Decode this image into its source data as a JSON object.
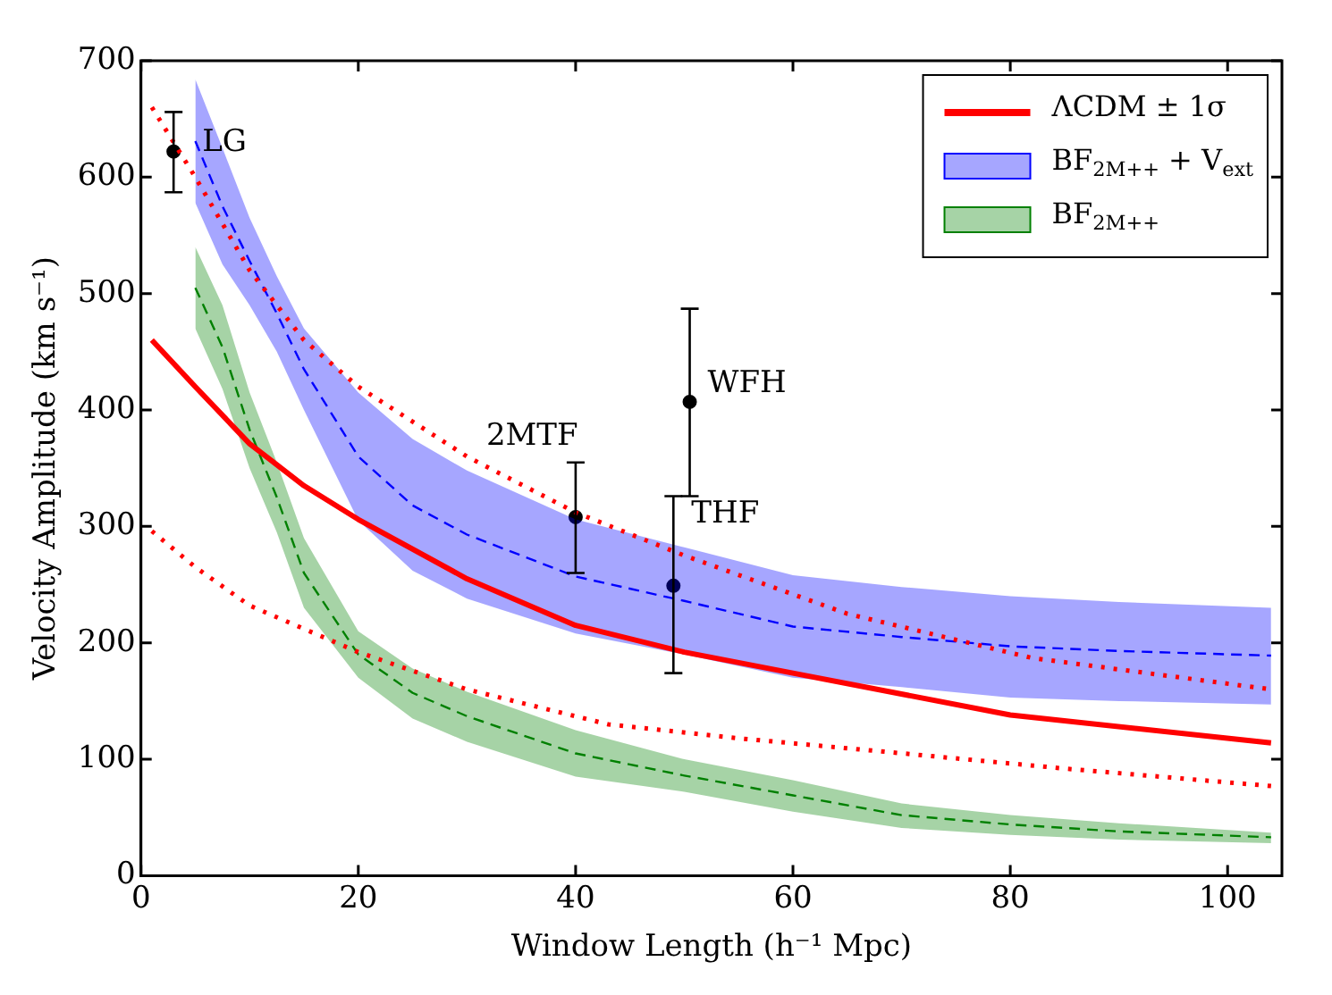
{
  "chart_data": {
    "type": "line",
    "xlabel": "Window Length (h⁻¹ Mpc)",
    "ylabel": "Velocity Amplitude (km s⁻¹)",
    "xlim": [
      0,
      105
    ],
    "ylim": [
      0,
      700
    ],
    "xticks": [
      0,
      20,
      40,
      60,
      80,
      100
    ],
    "yticks": [
      0,
      100,
      200,
      300,
      400,
      500,
      600,
      700
    ],
    "grid": false,
    "legend": "top right",
    "series": [
      {
        "name": "ΛCDM ± 1σ",
        "line_style": "solid",
        "color": "#ff0000",
        "x": [
          1,
          5,
          10,
          15,
          20,
          30,
          40,
          50,
          60,
          80,
          104
        ],
        "values": [
          460,
          420,
          371,
          335,
          306,
          255,
          215,
          192,
          174,
          138,
          114
        ]
      },
      {
        "line_style": "dotted",
        "color": "#ff0000",
        "x": [
          1,
          5,
          10,
          15,
          20,
          30,
          40,
          50,
          65,
          82,
          104
        ],
        "values": [
          660,
          600,
          520,
          460,
          420,
          360,
          312,
          275,
          225,
          187,
          160
        ]
      },
      {
        "line_style": "dotted",
        "color": "#ff0000",
        "x": [
          1,
          5,
          10,
          20,
          30,
          43,
          55,
          69,
          85,
          104
        ],
        "values": [
          296,
          265,
          232,
          192,
          160,
          130,
          118,
          106,
          92,
          77
        ]
      },
      {
        "name": "BF$_{2M++}$ + V$_{ext}$",
        "line_style": "dashed",
        "color": "#0000ff",
        "x": [
          5,
          7.5,
          10,
          12.5,
          15,
          20,
          25,
          30,
          40,
          50,
          60,
          70,
          80,
          90,
          104
        ],
        "values": [
          631,
          575,
          528,
          483,
          435,
          360,
          318,
          293,
          257,
          236,
          214,
          205,
          197,
          193,
          189
        ],
        "lower": [
          578,
          525,
          490,
          450,
          400,
          305,
          262,
          238,
          208,
          190,
          170,
          162,
          153,
          150,
          147
        ],
        "upper": [
          684,
          625,
          565,
          515,
          470,
          415,
          375,
          348,
          306,
          282,
          258,
          248,
          240,
          235,
          230
        ]
      },
      {
        "name": "BF$_{2M++}$",
        "line_style": "dashed",
        "color": "#008000",
        "x": [
          5,
          7.5,
          10,
          12.5,
          15,
          20,
          25,
          30,
          40,
          50,
          60,
          70,
          80,
          90,
          104
        ],
        "values": [
          505,
          454,
          383,
          325,
          260,
          190,
          157,
          137,
          105,
          86,
          69,
          52,
          44,
          38,
          33
        ],
        "lower": [
          470,
          418,
          350,
          295,
          230,
          170,
          135,
          115,
          85,
          72,
          55,
          41,
          35,
          31,
          28
        ],
        "upper": [
          540,
          490,
          415,
          355,
          290,
          210,
          178,
          158,
          125,
          100,
          82,
          62,
          52,
          45,
          37
        ]
      },
      {
        "type": "scatter",
        "marker": "circle",
        "color": "#000000",
        "x": [
          3,
          40,
          50.5,
          49
        ],
        "values": [
          622,
          308,
          407,
          249
        ],
        "errors": [
          [
            587,
            656
          ],
          [
            260,
            355
          ],
          [
            326,
            487
          ],
          [
            174,
            326
          ]
        ]
      }
    ],
    "annotations": [
      {
        "text": "LG",
        "x": 3,
        "y": 622
      },
      {
        "text": "2MTF",
        "x": 40,
        "y": 308
      },
      {
        "text": "WFH",
        "x": 50.5,
        "y": 407
      },
      {
        "text": "THF",
        "x": 49,
        "y": 249
      }
    ]
  }
}
